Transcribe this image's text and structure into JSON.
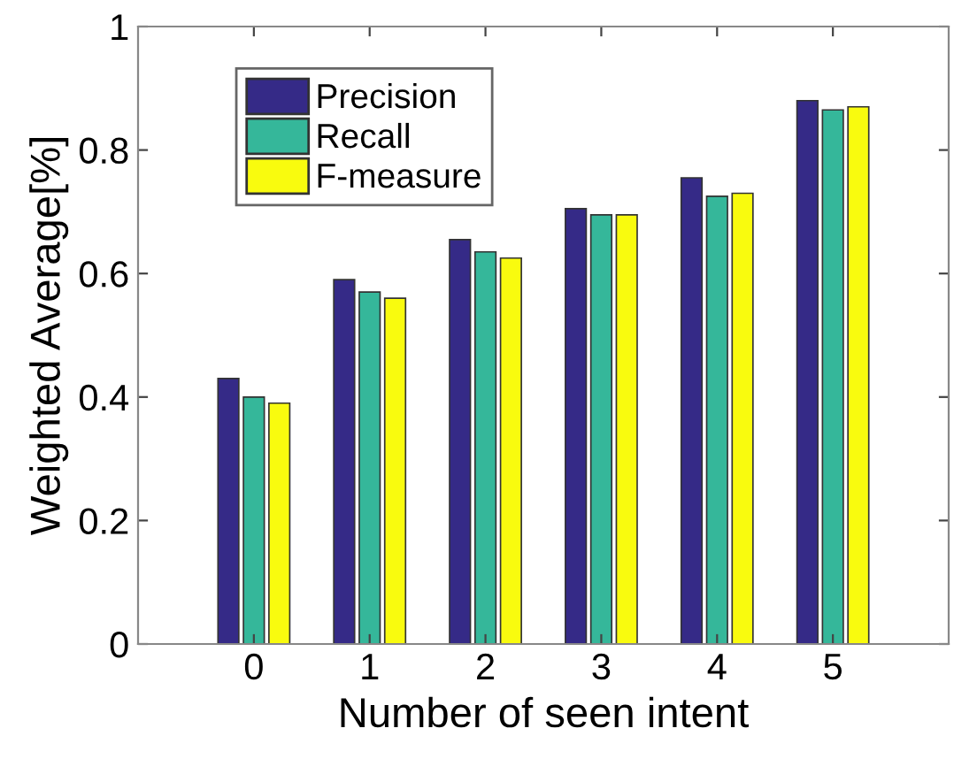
{
  "chart_data": {
    "type": "bar",
    "xlabel": "Number of seen intent",
    "ylabel": "Weighted Average[%]",
    "categories": [
      "0",
      "1",
      "2",
      "3",
      "4",
      "5"
    ],
    "series": [
      {
        "name": "Precision",
        "color": "#352a87",
        "values": [
          0.43,
          0.59,
          0.655,
          0.705,
          0.755,
          0.88
        ]
      },
      {
        "name": "Recall",
        "color": "#35b79a",
        "values": [
          0.4,
          0.57,
          0.635,
          0.695,
          0.725,
          0.865
        ]
      },
      {
        "name": "F-measure",
        "color": "#f9fb0e",
        "values": [
          0.39,
          0.56,
          0.625,
          0.695,
          0.73,
          0.87
        ]
      }
    ],
    "ylim": [
      0,
      1
    ],
    "yticks": [
      0,
      0.2,
      0.4,
      0.6,
      0.8,
      1
    ],
    "legend": "top left",
    "grid": false
  }
}
